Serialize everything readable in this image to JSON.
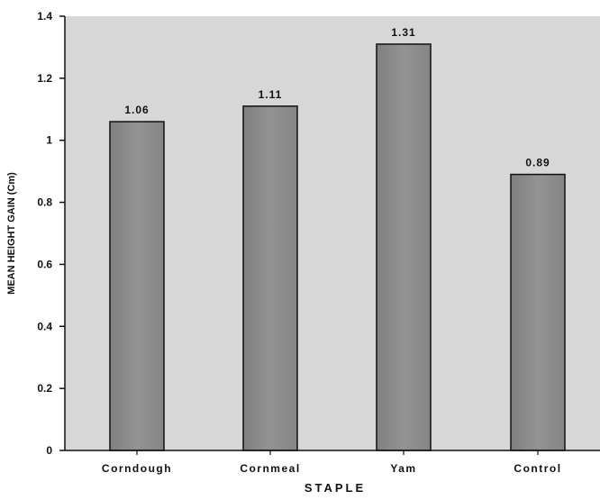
{
  "chart_data": {
    "type": "bar",
    "title": "",
    "xlabel": "STAPLE",
    "ylabel": "MEAN HEIGHT GAIN (Cm)",
    "categories": [
      "Corndough",
      "Cornmeal",
      "Yam",
      "Control"
    ],
    "values": [
      1.06,
      1.11,
      1.31,
      0.89
    ],
    "data_labels": [
      "1.06",
      "1.11",
      "1.31",
      "0.89"
    ],
    "y_ticks": [
      "0",
      "0.2",
      "0.4",
      "0.6",
      "0.8",
      "1",
      "1.2",
      "1.4"
    ],
    "ylim": [
      0,
      1.4
    ],
    "grid": false,
    "legend": "none",
    "colors": {
      "plot_background": "#d7d7d7",
      "bar_fill": "#888888",
      "bar_stroke": "#111111",
      "axis": "#111111",
      "text": "#111111"
    }
  }
}
